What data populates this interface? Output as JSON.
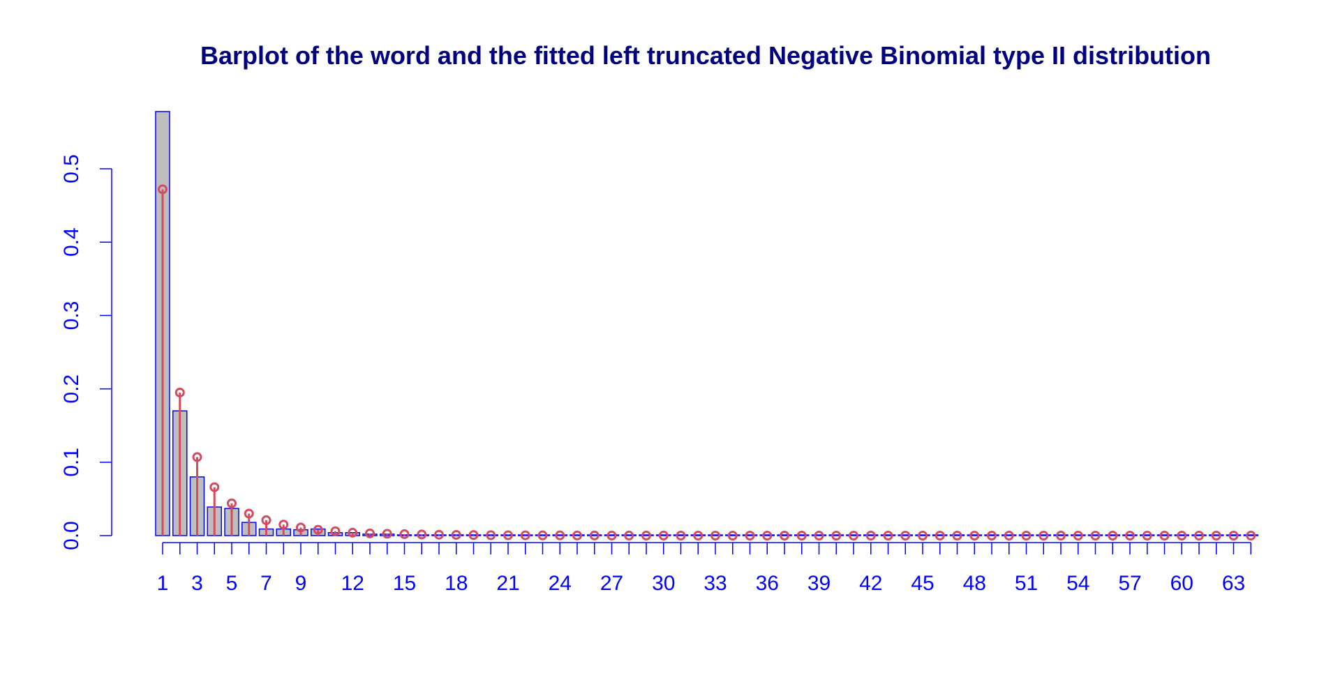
{
  "chart_data": {
    "type": "bar",
    "title": "Barplot of the word and the fitted left truncated Negative Binomial type II distribution",
    "xlabel": "",
    "ylabel": "",
    "ylim": [
      0,
      0.58
    ],
    "y_ticks": [
      "0.0",
      "0.1",
      "0.2",
      "0.3",
      "0.4",
      "0.5"
    ],
    "x_tick_labels": [
      "1",
      "3",
      "5",
      "7",
      "9",
      "12",
      "15",
      "18",
      "21",
      "24",
      "27",
      "30",
      "33",
      "36",
      "39",
      "42",
      "45",
      "48",
      "51",
      "54",
      "57",
      "60",
      "63"
    ],
    "categories": [
      1,
      2,
      3,
      4,
      5,
      6,
      7,
      8,
      9,
      10,
      11,
      12,
      13,
      14,
      15,
      16,
      17,
      18,
      19,
      20,
      21,
      22,
      23,
      24,
      25,
      26,
      27,
      28,
      29,
      30,
      31,
      32,
      33,
      34,
      35,
      36,
      37,
      38,
      39,
      40,
      41,
      42,
      43,
      44,
      45,
      46,
      47,
      48,
      49,
      50,
      51,
      52,
      53,
      54,
      55,
      56,
      57,
      58,
      59,
      60,
      61,
      62,
      63,
      64
    ],
    "series": [
      {
        "type": "bar",
        "values": [
          0.578,
          0.17,
          0.08,
          0.039,
          0.037,
          0.018,
          0.009,
          0.009,
          0.008,
          0.009,
          0.004,
          0.004,
          0.002,
          0.002,
          0.001,
          0.001,
          0.001,
          0.001,
          0.001,
          0,
          0,
          0,
          0,
          0,
          0,
          0,
          0,
          0,
          0,
          0,
          0,
          0,
          0,
          0,
          0,
          0,
          0,
          0,
          0,
          0,
          0,
          0,
          0,
          0,
          0,
          0,
          0,
          0,
          0,
          0,
          0,
          0,
          0,
          0,
          0,
          0,
          0,
          0,
          0,
          0,
          0,
          0,
          0,
          0
        ]
      },
      {
        "type": "point-line",
        "values": [
          0.472,
          0.195,
          0.107,
          0.066,
          0.044,
          0.03,
          0.021,
          0.015,
          0.011,
          0.008,
          0.006,
          0.004,
          0.003,
          0.0025,
          0.002,
          0.0015,
          0.0012,
          0.001,
          0.0008,
          0.0006,
          0.0005,
          0.0004,
          0.0003,
          0.0003,
          0.0002,
          0.0002,
          0.0001,
          0.0001,
          0.0001,
          0.0001,
          0,
          0,
          0,
          0,
          0,
          0,
          0,
          0,
          0,
          0,
          0,
          0,
          0,
          0,
          0,
          0,
          0,
          0,
          0,
          0,
          0,
          0,
          0,
          0,
          0,
          0,
          0,
          0,
          0,
          0,
          0,
          0,
          0,
          0
        ]
      }
    ],
    "grid": false,
    "colors": {
      "title": "#000080",
      "axis": "#0000ff",
      "bar_fill": "#bebebe",
      "bar_border": "#0000ff",
      "fit": "#d44a5f"
    }
  }
}
